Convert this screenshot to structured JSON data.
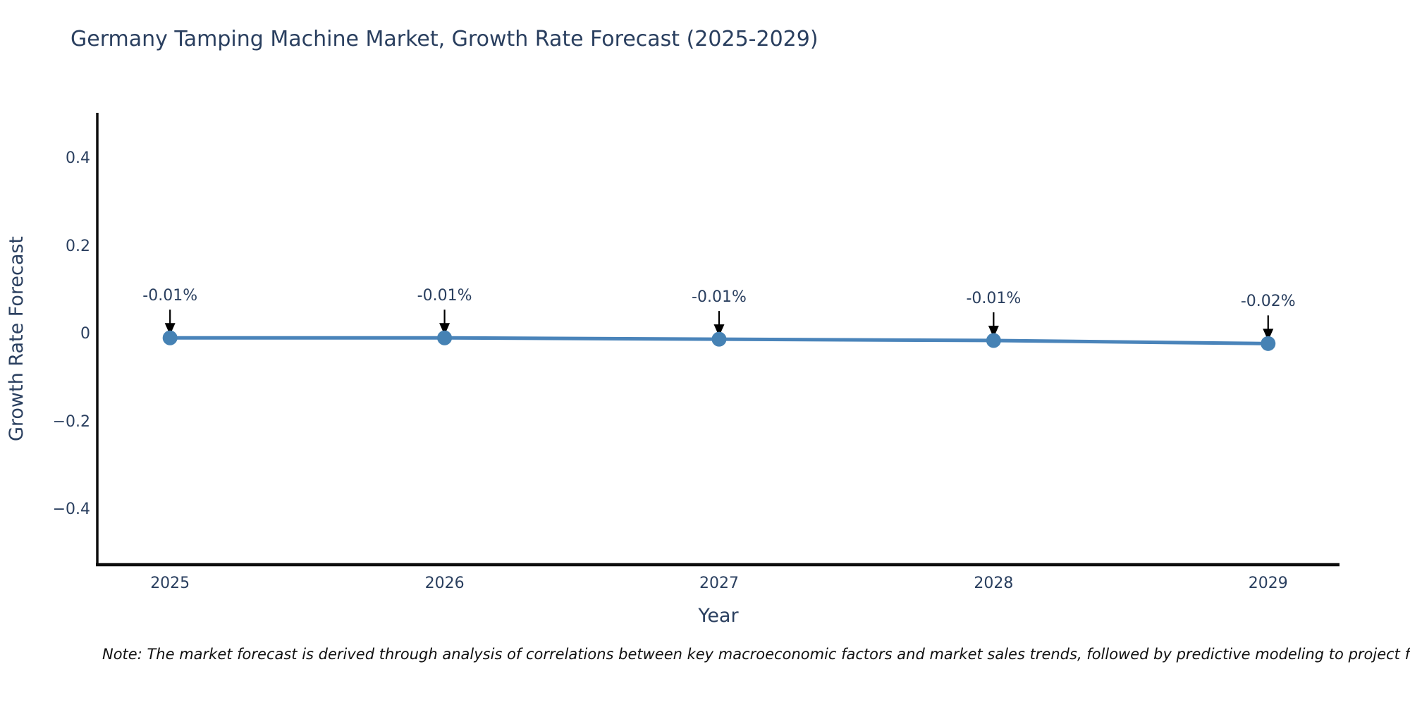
{
  "header": {
    "title": "Germany Tamping Machine Market, Growth Rate Forecast (2025-2029)"
  },
  "footnote": "Note: The market forecast is derived through analysis of correlations between key macroeconomic factors and market sales trends, followed by predictive modeling to project future sales",
  "chart_data": {
    "type": "line",
    "title": "Germany Tamping Machine Market, Growth Rate Forecast (2025-2029)",
    "xlabel": "Year",
    "ylabel": "Growth Rate Forecast",
    "x": [
      2025,
      2026,
      2027,
      2028,
      2029
    ],
    "values": [
      -0.008,
      -0.008,
      -0.011,
      -0.014,
      -0.021
    ],
    "point_labels": [
      "-0.01%",
      "-0.01%",
      "-0.01%",
      "-0.01%",
      "-0.02%"
    ],
    "xtick_labels": [
      "2025",
      "2026",
      "2027",
      "2028",
      "2029"
    ],
    "ytick_values": [
      0.4,
      0.2,
      0,
      -0.2,
      -0.4
    ],
    "ytick_labels": [
      "0.4",
      "0.2",
      "0",
      "−0.2",
      "−0.4"
    ],
    "xlim": [
      2024.735,
      2029.26
    ],
    "ylim": [
      -0.525,
      0.505
    ],
    "grid": false,
    "legend": "none",
    "colors": {
      "line": "#4a84ba",
      "marker": "#4682b4",
      "axis": "#0d0d0d",
      "arrow": "#000000",
      "text": "#2a3f5f"
    }
  }
}
